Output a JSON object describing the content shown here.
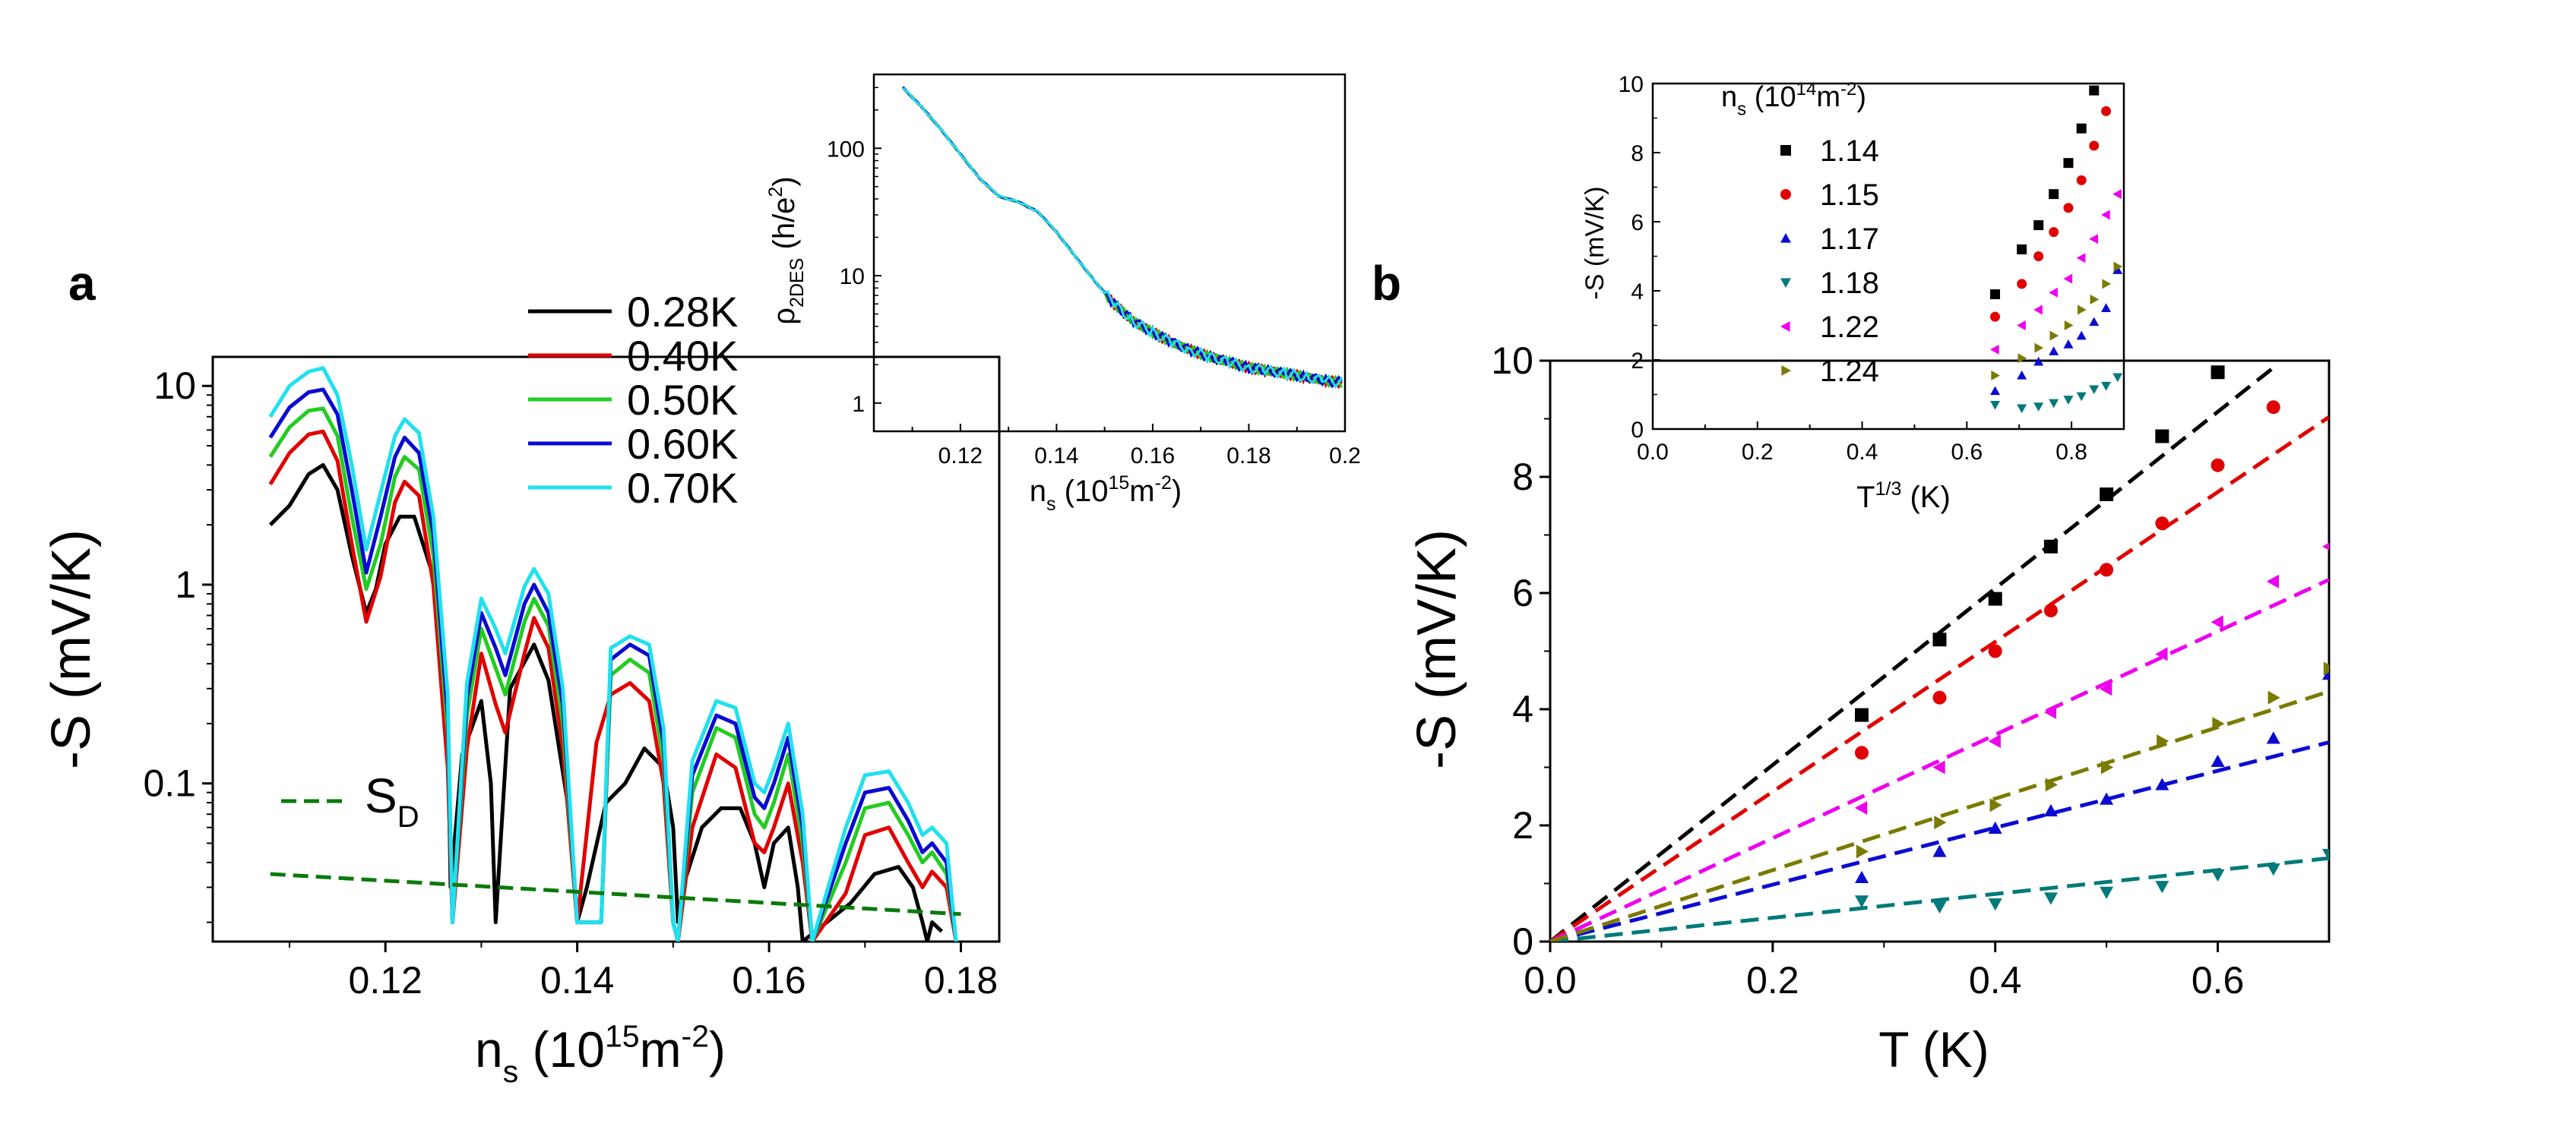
{
  "chart_data": [
    {
      "panel": "a",
      "type": "line",
      "title": "",
      "xlabel": {
        "main": "n",
        "sub": "s",
        "unit": " (10",
        "sup": "15",
        "tail": "m",
        "sup2": "-2",
        "end": ")"
      },
      "ylabel": "-S (mV/K)",
      "yscale": "log",
      "xlim": [
        0.102,
        0.184
      ],
      "ylim": [
        0.016,
        14
      ],
      "xticks": [
        0.12,
        0.14,
        0.16,
        0.18
      ],
      "xtick_labels": [
        "0.12",
        "0.14",
        "0.16",
        "0.18"
      ],
      "yticks": [
        0.1,
        1,
        10
      ],
      "ytick_labels": [
        "0.1",
        "1",
        "10"
      ],
      "legend_position": "top-right",
      "series": [
        {
          "name": "0.28K",
          "color": "#000000",
          "x": [
            0.108,
            0.11,
            0.112,
            0.1135,
            0.115,
            0.1165,
            0.118,
            0.119,
            0.12,
            0.1215,
            0.123,
            0.125,
            0.1265,
            0.1268,
            0.128,
            0.13,
            0.131,
            0.1315,
            0.133,
            0.1355,
            0.137,
            0.139,
            0.14,
            0.141,
            0.143,
            0.145,
            0.147,
            0.149,
            0.15,
            0.1505,
            0.151,
            0.153,
            0.155,
            0.157,
            0.1585,
            0.1595,
            0.1605,
            0.162,
            0.163,
            0.1635,
            0.1685,
            0.171,
            0.1735,
            0.175,
            0.176,
            0.1765,
            0.177,
            0.178
          ],
          "values": [
            2.0,
            2.5,
            3.6,
            4.0,
            3.0,
            1.4,
            0.72,
            0.95,
            1.6,
            2.2,
            2.2,
            1.1,
            0.2,
            0.03,
            0.14,
            0.26,
            0.1,
            0.02,
            0.3,
            0.5,
            0.33,
            0.08,
            0.02,
            0.03,
            0.08,
            0.1,
            0.15,
            0.12,
            0.06,
            0.02,
            0.03,
            0.06,
            0.075,
            0.075,
            0.05,
            0.03,
            0.05,
            0.06,
            0.03,
            0.016,
            0.025,
            0.035,
            0.038,
            0.03,
            0.02,
            0.016,
            0.02,
            0.018
          ]
        },
        {
          "name": "0.40K",
          "color": "#e00000",
          "x": [
            0.108,
            0.11,
            0.112,
            0.1135,
            0.115,
            0.1165,
            0.118,
            0.1195,
            0.121,
            0.122,
            0.1235,
            0.125,
            0.1265,
            0.127,
            0.1285,
            0.13,
            0.1315,
            0.1325,
            0.1345,
            0.1355,
            0.137,
            0.1385,
            0.14,
            0.142,
            0.1435,
            0.1455,
            0.1475,
            0.149,
            0.15,
            0.1505,
            0.152,
            0.1545,
            0.1565,
            0.1585,
            0.1595,
            0.1605,
            0.162,
            0.1635,
            0.1645,
            0.168,
            0.17,
            0.1725,
            0.1745,
            0.176,
            0.177,
            0.1785,
            0.1795
          ],
          "values": [
            3.2,
            4.6,
            5.7,
            5.9,
            4.2,
            1.6,
            0.65,
            1.1,
            2.6,
            3.3,
            2.8,
            1.0,
            0.12,
            0.02,
            0.15,
            0.45,
            0.25,
            0.18,
            0.45,
            0.68,
            0.48,
            0.15,
            0.02,
            0.16,
            0.28,
            0.32,
            0.26,
            0.1,
            0.02,
            0.016,
            0.06,
            0.14,
            0.12,
            0.05,
            0.045,
            0.06,
            0.1,
            0.04,
            0.016,
            0.028,
            0.055,
            0.06,
            0.04,
            0.03,
            0.036,
            0.03,
            0.016
          ]
        },
        {
          "name": "0.50K",
          "color": "#22cc22",
          "x": [
            0.108,
            0.11,
            0.112,
            0.1135,
            0.115,
            0.1165,
            0.118,
            0.1195,
            0.121,
            0.122,
            0.1235,
            0.125,
            0.1265,
            0.127,
            0.1285,
            0.13,
            0.1315,
            0.1325,
            0.1345,
            0.1355,
            0.137,
            0.1385,
            0.14,
            0.1425,
            0.1435,
            0.1455,
            0.1475,
            0.149,
            0.15,
            0.1505,
            0.152,
            0.1545,
            0.1565,
            0.1585,
            0.1595,
            0.1605,
            0.162,
            0.1635,
            0.1645,
            0.168,
            0.17,
            0.1725,
            0.1745,
            0.176,
            0.177,
            0.1785,
            0.1795
          ],
          "values": [
            4.4,
            6.2,
            7.5,
            7.7,
            5.6,
            2.2,
            0.95,
            1.6,
            3.5,
            4.4,
            3.8,
            1.4,
            0.18,
            0.02,
            0.22,
            0.6,
            0.38,
            0.28,
            0.65,
            0.85,
            0.62,
            0.2,
            0.02,
            0.02,
            0.35,
            0.42,
            0.36,
            0.13,
            0.02,
            0.016,
            0.09,
            0.19,
            0.17,
            0.07,
            0.06,
            0.08,
            0.14,
            0.05,
            0.016,
            0.04,
            0.075,
            0.08,
            0.055,
            0.04,
            0.045,
            0.035,
            0.016
          ]
        },
        {
          "name": "0.60K",
          "color": "#0a0ad0",
          "x": [
            0.108,
            0.11,
            0.112,
            0.1135,
            0.115,
            0.1165,
            0.118,
            0.1195,
            0.121,
            0.122,
            0.1235,
            0.125,
            0.1265,
            0.127,
            0.1285,
            0.13,
            0.1315,
            0.1325,
            0.1345,
            0.1355,
            0.137,
            0.1385,
            0.14,
            0.1425,
            0.1435,
            0.1455,
            0.1475,
            0.149,
            0.15,
            0.1505,
            0.152,
            0.1545,
            0.1565,
            0.1585,
            0.1595,
            0.1605,
            0.162,
            0.1635,
            0.1645,
            0.168,
            0.17,
            0.1725,
            0.1745,
            0.176,
            0.177,
            0.1785,
            0.1795
          ],
          "values": [
            5.5,
            7.8,
            9.3,
            9.6,
            7.2,
            3.0,
            1.15,
            2.2,
            4.4,
            5.5,
            4.6,
            1.8,
            0.22,
            0.02,
            0.27,
            0.72,
            0.48,
            0.35,
            0.8,
            1.0,
            0.72,
            0.25,
            0.02,
            0.02,
            0.42,
            0.5,
            0.44,
            0.16,
            0.02,
            0.016,
            0.11,
            0.22,
            0.2,
            0.085,
            0.075,
            0.1,
            0.17,
            0.06,
            0.016,
            0.05,
            0.09,
            0.095,
            0.065,
            0.045,
            0.05,
            0.04,
            0.016
          ]
        },
        {
          "name": "0.70K",
          "color": "#22e0ee",
          "x": [
            0.108,
            0.11,
            0.112,
            0.1135,
            0.115,
            0.1165,
            0.118,
            0.1195,
            0.121,
            0.122,
            0.1235,
            0.125,
            0.1265,
            0.127,
            0.1285,
            0.13,
            0.1315,
            0.1325,
            0.1345,
            0.1355,
            0.137,
            0.1385,
            0.14,
            0.1425,
            0.1435,
            0.1455,
            0.1475,
            0.149,
            0.15,
            0.1505,
            0.152,
            0.1545,
            0.1565,
            0.1585,
            0.1595,
            0.1605,
            0.162,
            0.1635,
            0.1645,
            0.168,
            0.17,
            0.1725,
            0.1745,
            0.176,
            0.177,
            0.1785,
            0.1795
          ],
          "values": [
            7.0,
            10.0,
            11.8,
            12.3,
            9.0,
            4.0,
            1.5,
            2.9,
            5.6,
            6.8,
            5.8,
            2.2,
            0.28,
            0.02,
            0.32,
            0.85,
            0.6,
            0.45,
            0.98,
            1.2,
            0.9,
            0.3,
            0.02,
            0.02,
            0.48,
            0.55,
            0.5,
            0.19,
            0.02,
            0.016,
            0.13,
            0.26,
            0.24,
            0.1,
            0.09,
            0.12,
            0.2,
            0.07,
            0.016,
            0.06,
            0.11,
            0.115,
            0.08,
            0.055,
            0.06,
            0.05,
            0.016
          ]
        }
      ],
      "reference_line": {
        "name": "S_D",
        "label": "S",
        "label_sub": "D",
        "color": "#0a7a0a",
        "x": [
          0.108,
          0.18
        ],
        "values": [
          0.035,
          0.022
        ]
      },
      "inset": {
        "type": "line",
        "ylabel": {
          "main": "ρ",
          "sub": "2DES",
          "unit": " (h/e",
          "sup": "2",
          "end": ")"
        },
        "xlabel": {
          "main": "n",
          "sub": "s",
          "unit": " (10",
          "sup": "15",
          "tail": "m",
          "sup2": "-2",
          "end": ")"
        },
        "yscale": "log",
        "xlim": [
          0.102,
          0.2
        ],
        "ylim": [
          0.6,
          380
        ],
        "xticks": [
          0.12,
          0.14,
          0.16,
          0.18,
          0.2
        ],
        "xtick_labels": [
          "0.12",
          "0.14",
          "0.16",
          "0.18",
          "0.2"
        ],
        "yticks": [
          1,
          10,
          100
        ],
        "ytick_labels": [
          "1",
          "10",
          "100"
        ],
        "x": [
          0.108,
          0.112,
          0.116,
          0.12,
          0.124,
          0.128,
          0.132,
          0.136,
          0.14,
          0.144,
          0.148,
          0.152,
          0.156,
          0.16,
          0.164,
          0.168,
          0.172,
          0.176,
          0.18,
          0.184,
          0.188,
          0.192,
          0.196,
          0.2
        ],
        "values": [
          300,
          210,
          140,
          90,
          58,
          42,
          38,
          32,
          22,
          14,
          9,
          6,
          4.4,
          3.6,
          3.0,
          2.6,
          2.3,
          2.1,
          1.9,
          1.8,
          1.7,
          1.6,
          1.5,
          1.45
        ],
        "series_colors": [
          "#000000",
          "#e00000",
          "#22cc22",
          "#0a0ad0",
          "#22e0ee"
        ]
      }
    },
    {
      "panel": "b",
      "type": "scatter",
      "title": "",
      "xlabel": "T (K)",
      "ylabel": "-S (mV/K)",
      "xlim": [
        0,
        0.7
      ],
      "ylim": [
        0,
        10
      ],
      "xticks": [
        0,
        0.2,
        0.4,
        0.6
      ],
      "xtick_labels": [
        "0.0",
        "0.2",
        "0.4",
        "0.6"
      ],
      "yticks": [
        0,
        2,
        4,
        6,
        8,
        10
      ],
      "ytick_labels": [
        "0",
        "2",
        "4",
        "6",
        "8",
        "10"
      ],
      "series": [
        {
          "name": "1.14",
          "color": "#000000",
          "marker": "square",
          "x": [
            0.28,
            0.35,
            0.4,
            0.45,
            0.5,
            0.55,
            0.6
          ],
          "values": [
            3.9,
            5.2,
            5.9,
            6.8,
            7.7,
            8.7,
            9.8
          ],
          "fit_slope": 15.2,
          "fit_xmax": 0.65
        },
        {
          "name": "1.15",
          "color": "#e00000",
          "marker": "circle",
          "x": [
            0.28,
            0.35,
            0.4,
            0.45,
            0.5,
            0.55,
            0.6,
            0.65
          ],
          "values": [
            3.25,
            4.2,
            5.0,
            5.7,
            6.4,
            7.2,
            8.2,
            9.2
          ],
          "fit_slope": 12.9,
          "fit_xmax": 0.7
        },
        {
          "name": "1.17",
          "color": "#0a0ad0",
          "marker": "triangle-up",
          "x": [
            0.28,
            0.35,
            0.4,
            0.45,
            0.5,
            0.55,
            0.6,
            0.65,
            0.7
          ],
          "values": [
            1.1,
            1.55,
            1.95,
            2.25,
            2.45,
            2.7,
            3.1,
            3.5,
            4.6
          ],
          "fit_slope": 4.9,
          "fit_xmax": 0.7
        },
        {
          "name": "1.18",
          "color": "#007a7a",
          "marker": "triangle-down",
          "x": [
            0.28,
            0.35,
            0.4,
            0.45,
            0.5,
            0.55,
            0.6,
            0.65,
            0.7
          ],
          "values": [
            0.7,
            0.6,
            0.65,
            0.75,
            0.85,
            0.95,
            1.15,
            1.25,
            1.5
          ],
          "fit_slope": 2.05,
          "fit_xmax": 0.7
        },
        {
          "name": "1.22",
          "color": "#ee00ee",
          "marker": "triangle-left",
          "x": [
            0.28,
            0.35,
            0.4,
            0.45,
            0.5,
            0.55,
            0.6,
            0.65,
            0.7
          ],
          "values": [
            2.3,
            3.0,
            3.45,
            3.95,
            4.35,
            4.95,
            5.5,
            6.2,
            6.8
          ],
          "fit_slope": 8.9,
          "fit_xmax": 0.7
        },
        {
          "name": "1.24",
          "color": "#7a7a00",
          "marker": "triangle-right",
          "x": [
            0.28,
            0.35,
            0.4,
            0.45,
            0.5,
            0.55,
            0.6,
            0.65,
            0.7
          ],
          "values": [
            1.55,
            2.05,
            2.35,
            2.7,
            3.0,
            3.45,
            3.75,
            4.2,
            4.7
          ],
          "fit_slope": 6.15,
          "fit_xmax": 0.7
        }
      ],
      "inset": {
        "type": "scatter",
        "ylabel": "-S (mV/K)",
        "xlabel": {
          "main": "T",
          "sup": "1/3",
          "end": " (K)"
        },
        "legend_title": {
          "main": "n",
          "sub": "s",
          "unit": " (10",
          "sup": "14",
          "tail": "m",
          "sup2": "-2",
          "end": ")"
        },
        "xlim": [
          0,
          0.9
        ],
        "ylim": [
          0,
          10
        ],
        "xticks": [
          0.0,
          0.2,
          0.4,
          0.6,
          0.8
        ],
        "xtick_labels": [
          "0.0",
          "0.2",
          "0.4",
          "0.6",
          "0.8"
        ],
        "yticks": [
          0,
          2,
          4,
          6,
          8,
          10
        ],
        "ytick_labels": [
          "0",
          "2",
          "4",
          "6",
          "8",
          "10"
        ],
        "series_x": [
          0.654,
          0.705,
          0.737,
          0.766,
          0.794,
          0.819,
          0.843,
          0.866,
          0.888
        ],
        "series": [
          {
            "name": "1.14",
            "values": [
              3.9,
              5.2,
              5.9,
              6.8,
              7.7,
              8.7,
              9.8,
              null,
              null
            ]
          },
          {
            "name": "1.15",
            "values": [
              3.25,
              4.2,
              5.0,
              5.7,
              6.4,
              7.2,
              8.2,
              9.2,
              null
            ]
          },
          {
            "name": "1.17",
            "values": [
              1.1,
              1.55,
              1.95,
              2.25,
              2.45,
              2.7,
              3.1,
              3.5,
              4.6
            ]
          },
          {
            "name": "1.18",
            "values": [
              0.7,
              0.6,
              0.65,
              0.75,
              0.85,
              0.95,
              1.15,
              1.25,
              1.5
            ]
          },
          {
            "name": "1.22",
            "values": [
              2.3,
              3.0,
              3.45,
              3.95,
              4.35,
              4.95,
              5.5,
              6.2,
              6.8
            ]
          },
          {
            "name": "1.24",
            "values": [
              1.55,
              2.05,
              2.35,
              2.7,
              3.0,
              3.45,
              3.75,
              4.2,
              4.7
            ]
          }
        ]
      }
    }
  ],
  "panel_labels": {
    "a": "a",
    "b": "b"
  }
}
